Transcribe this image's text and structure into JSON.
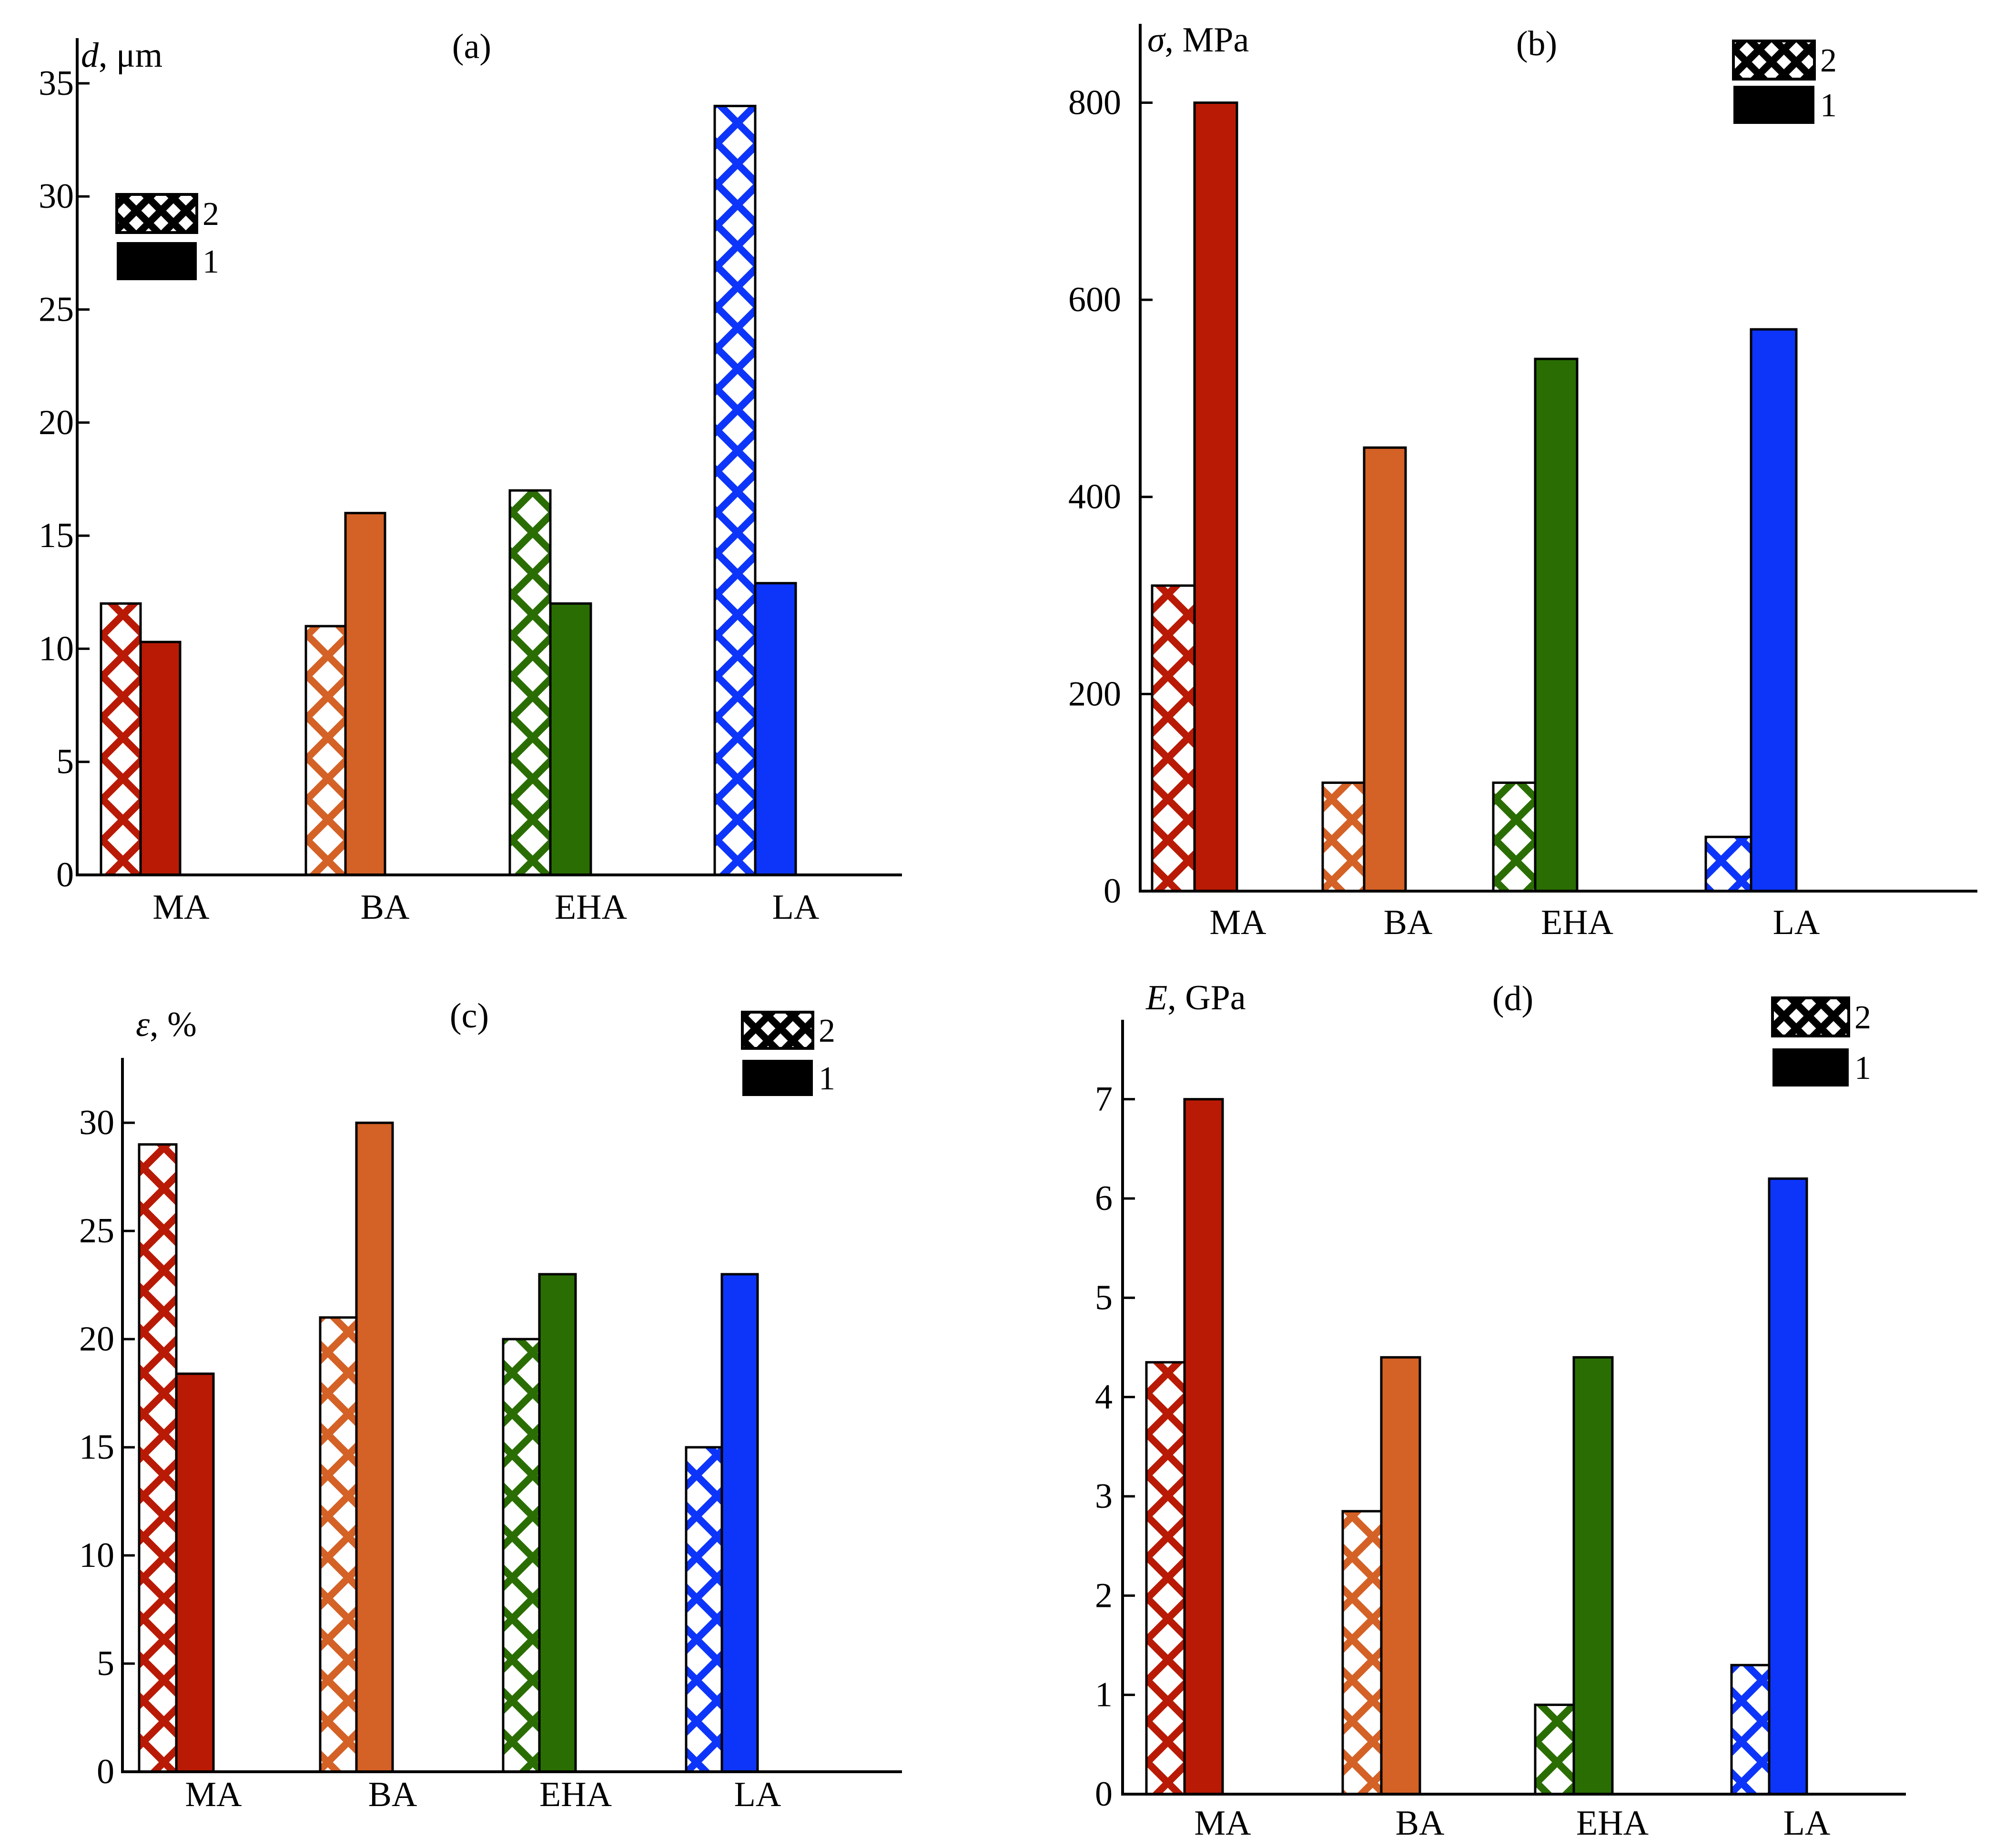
{
  "colors": {
    "MA": "#b91a05",
    "BA": "#d46126",
    "EHA": "#2a6e03",
    "LA": "#0d35fa",
    "legend": "#000000",
    "axis": "#000000"
  },
  "legend_labels": {
    "hatched": "2",
    "solid": "1"
  },
  "chart_data": [
    {
      "type": "bar",
      "panel": "(a)",
      "ylabel_sym": "d",
      "ylabel_unit": ", μm",
      "categories": [
        "MA",
        "BA",
        "EHA",
        "LA"
      ],
      "series": [
        {
          "name": "2",
          "pattern": "hatched",
          "values": [
            12,
            11,
            17,
            34
          ]
        },
        {
          "name": "1",
          "pattern": "solid",
          "values": [
            10.3,
            16,
            12,
            12.9
          ]
        }
      ],
      "ylim": [
        0,
        37
      ],
      "yticks": [
        0,
        5,
        10,
        15,
        20,
        25,
        30,
        35
      ],
      "ytick_labels": [
        "0",
        "5",
        "10",
        "15",
        "20",
        "25",
        "30",
        "35"
      ],
      "legend_position": "upper-left"
    },
    {
      "type": "bar",
      "panel": "(b)",
      "ylabel_sym": "σ",
      "ylabel_unit": ", MPa",
      "categories": [
        "MA",
        "BA",
        "EHA",
        "LA"
      ],
      "series": [
        {
          "name": "2",
          "pattern": "hatched",
          "values": [
            310,
            110,
            110,
            55
          ]
        },
        {
          "name": "1",
          "pattern": "solid",
          "values": [
            800,
            450,
            540,
            570
          ]
        }
      ],
      "ylim": [
        0,
        880
      ],
      "yticks": [
        0,
        200,
        400,
        600,
        800
      ],
      "ytick_labels": [
        "0",
        "200",
        "400",
        "600",
        "800"
      ],
      "legend_position": "top-right"
    },
    {
      "type": "bar",
      "panel": "(c)",
      "ylabel_sym": "ε",
      "ylabel_unit": ", %",
      "categories": [
        "MA",
        "BA",
        "EHA",
        "LA"
      ],
      "series": [
        {
          "name": "2",
          "pattern": "hatched",
          "values": [
            29,
            21,
            20,
            15
          ]
        },
        {
          "name": "1",
          "pattern": "solid",
          "values": [
            18.4,
            30,
            23,
            23
          ]
        }
      ],
      "ylim": [
        0,
        33
      ],
      "yticks": [
        0,
        5,
        10,
        15,
        20,
        25,
        30
      ],
      "ytick_labels": [
        "0",
        "5",
        "10",
        "15",
        "20",
        "25",
        "30"
      ],
      "legend_position": "top-right"
    },
    {
      "type": "bar",
      "panel": "(d)",
      "ylabel_sym": "E",
      "ylabel_unit": ", GPa",
      "categories": [
        "MA",
        "BA",
        "EHA",
        "LA"
      ],
      "series": [
        {
          "name": "2",
          "pattern": "hatched",
          "values": [
            4.35,
            2.85,
            0.9,
            1.3
          ]
        },
        {
          "name": "1",
          "pattern": "solid",
          "values": [
            7,
            4.4,
            4.4,
            6.2
          ]
        }
      ],
      "ylim": [
        0,
        7.8
      ],
      "yticks": [
        0,
        1,
        2,
        3,
        4,
        5,
        6,
        7
      ],
      "ytick_labels": [
        "0",
        "1",
        "2",
        "3",
        "4",
        "5",
        "6",
        "7"
      ],
      "legend_position": "top-right"
    }
  ]
}
